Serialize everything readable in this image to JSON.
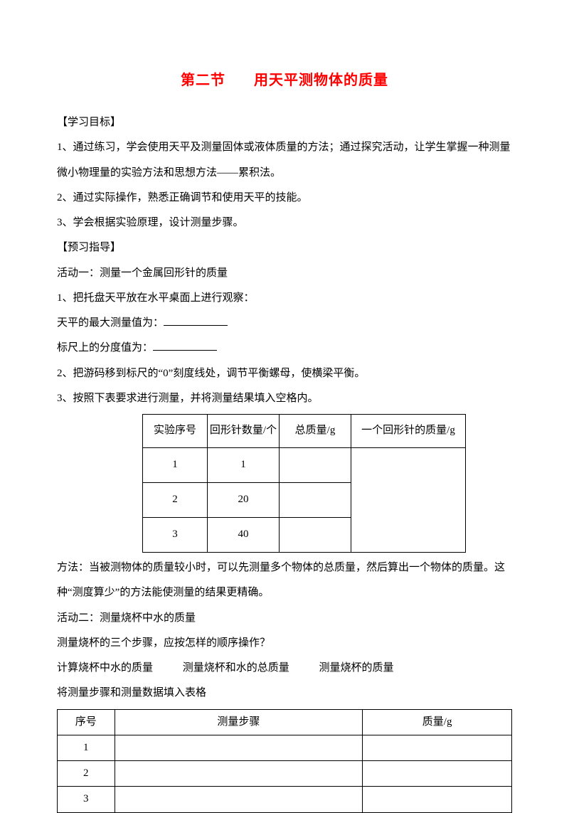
{
  "title_left": "第二节",
  "title_right": "用天平测物体的质量",
  "objectives_label": "【学习目标】",
  "obj1": "1、通过练习，学会使用天平及测量固体或液体质量的方法；通过探究活动，让学生掌握一种测量微小物理量的实验方法和思想方法——累积法。",
  "obj2": "2、通过实际操作，熟悉正确调节和使用天平的技能。",
  "obj3": "3、学会根据实验原理，设计测量步骤。",
  "preview_label": "【预习指导】",
  "activity1": "活动一：测量一个金属回形针的质量",
  "step1": "1、把托盘天平放在水平桌面上进行观察：",
  "max_label": "天平的最大测量值为：",
  "scale_label": "标尺上的分度值为：",
  "step2": "2、把游码移到标尺的“0”刻度线处，调节平衡螺母，使横梁平衡。",
  "step3": "3、按照下表要求进行测量，并将测量结果填入空格内。",
  "t1": {
    "h1": "实验序号",
    "h2": "回形针数量/个",
    "h3": "总质量/g",
    "h4": "一个回形针的质量/g",
    "rows": [
      {
        "seq": "1",
        "count": "1"
      },
      {
        "seq": "2",
        "count": "20"
      },
      {
        "seq": "3",
        "count": "40"
      }
    ]
  },
  "method": "方法：当被测物体的质量较小时，可以先测量多个物体的总质量，然后算出一个物体的质量。这种“测度算少”的方法能使测量的结果更精确。",
  "activity2": "活动二：测量烧杯中水的质量",
  "q2": "测量烧杯的三个步骤，应按怎样的顺序操作？",
  "opts": {
    "a": "计算烧杯中水的质量",
    "b": "测量烧杯和水的总质量",
    "c": "测量烧杯的质量"
  },
  "fill2": "将测量步骤和测量数据填入表格",
  "t2": {
    "h1": "序号",
    "h2": "测量步骤",
    "h3": "质量/g",
    "rows": [
      "1",
      "2",
      "3"
    ]
  }
}
